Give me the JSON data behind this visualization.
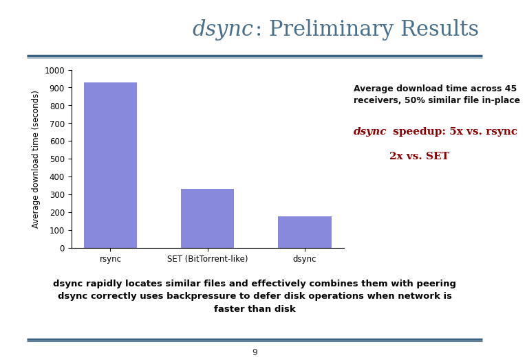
{
  "title_italic": "dsync",
  "title_rest": ": Preliminary Results",
  "title_color": "#4a6f8a",
  "title_fontsize": 22,
  "bar_labels": [
    "rsync",
    "SET (BitTorrent-like)",
    "dsync"
  ],
  "bar_values": [
    930,
    330,
    175
  ],
  "bar_color": "#8888dd",
  "ylabel": "Average download time (seconds)",
  "ylim": [
    0,
    1000
  ],
  "yticks": [
    0,
    100,
    200,
    300,
    400,
    500,
    600,
    700,
    800,
    900,
    1000
  ],
  "ann1_line1": "Average download time across 45",
  "ann1_line2": "receivers, 50% similar file in-place",
  "ann2_italic": "dsync",
  "ann2_rest_line1": " speedup: 5x vs. rsync",
  "ann2_line2": "2x vs. SET",
  "ann_color1": "#111111",
  "ann_color2": "#8b0000",
  "bottom_text_line1": "dsync rapidly locates similar files and effectively combines them with peering",
  "bottom_text_line2": "dsync correctly uses backpressure to defer disk operations when network is",
  "bottom_text_line3": "faster than disk",
  "bottom_box_bg": "#d8f4f4",
  "bottom_box_border": "#3a7a8a",
  "page_number": "9",
  "bg_color": "#ffffff",
  "line_color": "#3a6080"
}
